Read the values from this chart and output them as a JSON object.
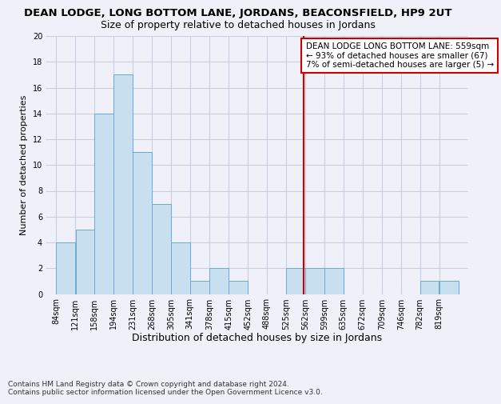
{
  "title": "DEAN LODGE, LONG BOTTOM LANE, JORDANS, BEACONSFIELD, HP9 2UT",
  "subtitle": "Size of property relative to detached houses in Jordans",
  "xlabel": "Distribution of detached houses by size in Jordans",
  "ylabel": "Number of detached properties",
  "footer1": "Contains HM Land Registry data © Crown copyright and database right 2024.",
  "footer2": "Contains public sector information licensed under the Open Government Licence v3.0.",
  "bin_labels": [
    "84sqm",
    "121sqm",
    "158sqm",
    "194sqm",
    "231sqm",
    "268sqm",
    "305sqm",
    "341sqm",
    "378sqm",
    "415sqm",
    "452sqm",
    "488sqm",
    "525sqm",
    "562sqm",
    "599sqm",
    "635sqm",
    "672sqm",
    "709sqm",
    "746sqm",
    "782sqm",
    "819sqm"
  ],
  "bin_edges": [
    84,
    121,
    158,
    194,
    231,
    268,
    305,
    341,
    378,
    415,
    452,
    488,
    525,
    562,
    599,
    635,
    672,
    709,
    746,
    782,
    819,
    856
  ],
  "values": [
    4,
    5,
    14,
    17,
    11,
    7,
    4,
    1,
    2,
    1,
    0,
    0,
    2,
    2,
    2,
    0,
    0,
    0,
    0,
    1,
    1
  ],
  "bar_color": "#c8dff0",
  "bar_edge_color": "#6aaad4",
  "vline_x": 559,
  "vline_color": "#cc0000",
  "annotation_line1": "DEAN LODGE LONG BOTTOM LANE: 559sqm",
  "annotation_line2": "← 93% of detached houses are smaller (67)",
  "annotation_line3": "7% of semi-detached houses are larger (5) →",
  "annotation_box_color": "#cc0000",
  "ylim": [
    0,
    20
  ],
  "yticks": [
    0,
    2,
    4,
    6,
    8,
    10,
    12,
    14,
    16,
    18,
    20
  ],
  "bg_color": "#f0f0f8",
  "grid_color": "#c8d0e0",
  "title_fontsize": 9.5,
  "subtitle_fontsize": 9,
  "xlabel_fontsize": 9,
  "ylabel_fontsize": 8,
  "tick_fontsize": 7,
  "annotation_fontsize": 7.5,
  "footer_fontsize": 6.5
}
